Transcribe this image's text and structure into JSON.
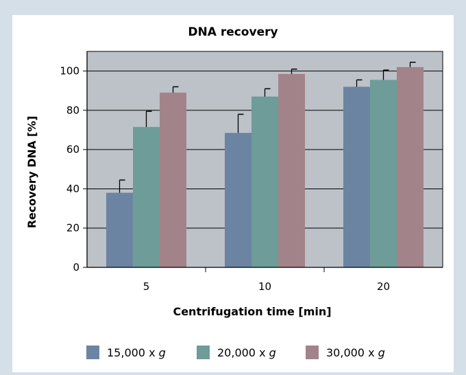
{
  "chart_data": {
    "type": "bar",
    "title": "DNA recovery",
    "xlabel": "Centrifugation time [min]",
    "ylabel": "Recovery DNA [%]",
    "categories": [
      "5",
      "10",
      "20"
    ],
    "ylim": [
      0,
      110
    ],
    "yticks": [
      "0",
      "20",
      "40",
      "60",
      "80",
      "100"
    ],
    "series": [
      {
        "name": "15,000 x g",
        "prefix": "15,000 x ",
        "suffix": "g",
        "color": "#6b84a2",
        "values": [
          38,
          68.5,
          92
        ],
        "errors": [
          6.5,
          9.5,
          3.5
        ]
      },
      {
        "name": "20,000 x g",
        "prefix": "20,000 x ",
        "suffix": "g",
        "color": "#6e9c98",
        "values": [
          71.5,
          87,
          95.5
        ],
        "errors": [
          8,
          4,
          5
        ]
      },
      {
        "name": "30,000 x g",
        "prefix": "30,000 x ",
        "suffix": "g",
        "color": "#a28389",
        "values": [
          89,
          98.5,
          102
        ],
        "errors": [
          3,
          2.5,
          2.5
        ]
      }
    ],
    "grid": true,
    "legend": "bottom"
  },
  "colors": {
    "page_background": "#d5dfe8",
    "panel_background": "#ffffff",
    "plot_background": "#bcc2c8"
  }
}
